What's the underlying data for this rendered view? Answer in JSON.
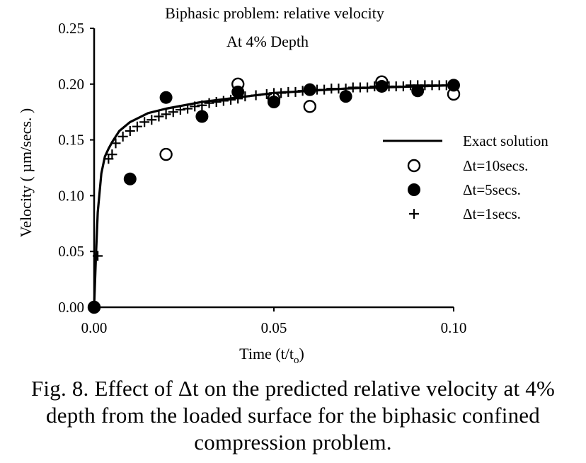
{
  "chart_data": {
    "type": "scatter",
    "title": "Biphasic problem: relative velocity",
    "subtitle": "At 4% Depth",
    "xlabel": "Time (t/t",
    "xlabel_subscript": "o",
    "xlabel_suffix": ")",
    "ylabel": "Velocity ( µm/secs. )",
    "xlim": [
      0,
      0.1
    ],
    "ylim": [
      0,
      0.25
    ],
    "x_ticks": [
      0,
      0.05,
      0.1
    ],
    "x_tick_labels": [
      "0.00",
      "0.05",
      "0.10"
    ],
    "y_ticks": [
      0,
      0.05,
      0.1,
      0.15,
      0.2,
      0.25
    ],
    "y_tick_labels": [
      "0.00",
      "0.05",
      "0.10",
      "0.15",
      "0.20",
      "0.25"
    ],
    "grid": false,
    "legend_position": "right",
    "series": [
      {
        "name": "Exact solution",
        "style": "line",
        "x": [
          0,
          0.0005,
          0.001,
          0.002,
          0.003,
          0.004,
          0.005,
          0.007,
          0.01,
          0.015,
          0.02,
          0.03,
          0.04,
          0.05,
          0.06,
          0.07,
          0.08,
          0.09,
          0.1
        ],
        "y": [
          0,
          0.045,
          0.085,
          0.12,
          0.135,
          0.142,
          0.148,
          0.158,
          0.166,
          0.174,
          0.178,
          0.184,
          0.188,
          0.192,
          0.194,
          0.196,
          0.197,
          0.198,
          0.199
        ]
      },
      {
        "name": "Δt=10secs.",
        "style": "open-circle",
        "x": [
          0,
          0.02,
          0.04,
          0.05,
          0.06,
          0.08,
          0.1
        ],
        "y": [
          0,
          0.137,
          0.2,
          0.187,
          0.18,
          0.202,
          0.191
        ]
      },
      {
        "name": "Δt=5secs.",
        "style": "filled-circle",
        "x": [
          0,
          0.01,
          0.02,
          0.03,
          0.04,
          0.05,
          0.06,
          0.07,
          0.08,
          0.09,
          0.1
        ],
        "y": [
          0,
          0.115,
          0.188,
          0.171,
          0.193,
          0.184,
          0.195,
          0.189,
          0.198,
          0.194,
          0.199
        ]
      },
      {
        "name": "Δt=1secs.",
        "style": "plus",
        "x": [
          0.001,
          0.004,
          0.005,
          0.006,
          0.008,
          0.01,
          0.012,
          0.014,
          0.016,
          0.018,
          0.02,
          0.022,
          0.024,
          0.026,
          0.028,
          0.03,
          0.032,
          0.034,
          0.036,
          0.038,
          0.04,
          0.042,
          0.045,
          0.048,
          0.05,
          0.052,
          0.054,
          0.056,
          0.058,
          0.06,
          0.062,
          0.064,
          0.066,
          0.068,
          0.07,
          0.072,
          0.074,
          0.076,
          0.078,
          0.08,
          0.082,
          0.084,
          0.086,
          0.088,
          0.09,
          0.092,
          0.094,
          0.096,
          0.098
        ],
        "y": [
          0.046,
          0.133,
          0.137,
          0.147,
          0.153,
          0.158,
          0.162,
          0.166,
          0.168,
          0.171,
          0.173,
          0.175,
          0.177,
          0.178,
          0.18,
          0.181,
          0.183,
          0.184,
          0.185,
          0.186,
          0.187,
          0.189,
          0.19,
          0.191,
          0.192,
          0.192,
          0.193,
          0.193,
          0.194,
          0.194,
          0.195,
          0.195,
          0.196,
          0.196,
          0.196,
          0.197,
          0.197,
          0.197,
          0.198,
          0.198,
          0.198,
          0.198,
          0.198,
          0.199,
          0.199,
          0.199,
          0.199,
          0.199,
          0.199
        ]
      }
    ]
  },
  "caption": {
    "line1": "Fig. 8. Effect of Δt on the predicted relative velocity at 4%",
    "line2": "depth from the loaded surface for the biphasic confined",
    "line3": "compression problem."
  }
}
